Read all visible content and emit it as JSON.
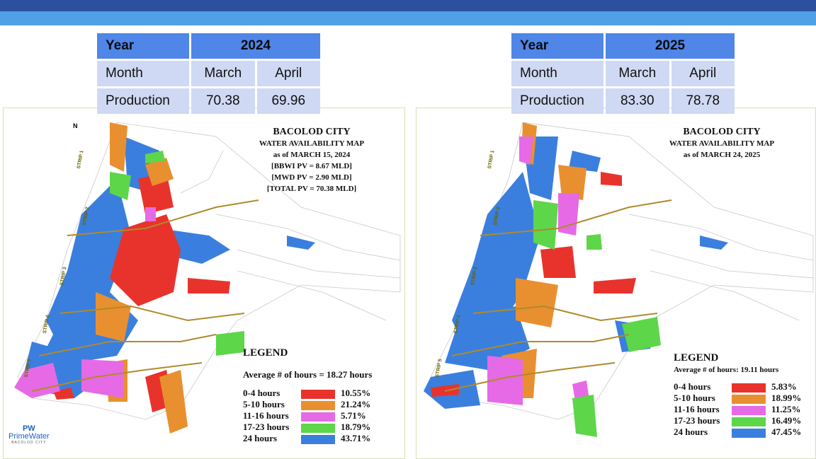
{
  "colors": {
    "header_dark": "#2c4f9e",
    "header_light": "#4fa0e6",
    "table_header": "#4f86e8",
    "table_row": "#cfd9f3",
    "red": "#e8332c",
    "orange": "#e8902f",
    "magenta": "#e66ae6",
    "green": "#5dd64a",
    "blue": "#3a7fde",
    "road": "#b08a2a"
  },
  "left": {
    "table": {
      "year_label": "Year",
      "year_value": "2024",
      "month_label": "Month",
      "month1": "March",
      "month2": "April",
      "prod_label": "Production",
      "prod1": "70.38",
      "prod2": "69.96"
    },
    "map": {
      "title": "BACOLOD CITY",
      "subtitle": "WATER AVAILABILITY MAP",
      "date": "as of MARCH 15, 2024",
      "line1": "[BBWI PV = 8.67 MLD]",
      "line2": "[MWD PV = 2.90 MLD]",
      "line3": "[TOTAL PV = 70.38 MLD]"
    },
    "legend": {
      "title": "LEGEND",
      "avg": "Average # of hours = 18.27 hours",
      "items": [
        {
          "label": "0-4 hours",
          "pct": "10.55%",
          "color": "#e8332c"
        },
        {
          "label": "5-10 hours",
          "pct": "21.24%",
          "color": "#e8902f"
        },
        {
          "label": "11-16 hours",
          "pct": "5.71%",
          "color": "#e66ae6"
        },
        {
          "label": "17-23 hours",
          "pct": "18.79%",
          "color": "#5dd64a"
        },
        {
          "label": "24 hours",
          "pct": "43.71%",
          "color": "#3a7fde"
        }
      ]
    },
    "strips": [
      "STRIP 1",
      "STRIP 2",
      "STRIP 3",
      "STRIP 4",
      "STRIP 5"
    ],
    "north": "N",
    "logo": {
      "mark": "PW",
      "name": "PrimeWater",
      "sub": "BACOLOD CITY"
    }
  },
  "right": {
    "table": {
      "year_label": "Year",
      "year_value": "2025",
      "month_label": "Month",
      "month1": "March",
      "month2": "April",
      "prod_label": "Production",
      "prod1": "83.30",
      "prod2": "78.78"
    },
    "map": {
      "title": "BACOLOD CITY",
      "subtitle": "WATER AVAILABILITY MAP",
      "date": "as of MARCH 24, 2025"
    },
    "legend": {
      "title": "LEGEND",
      "avg": "Average # of hours:  19.11 hours",
      "items": [
        {
          "label": "0-4 hours",
          "pct": "5.83%",
          "color": "#e8332c"
        },
        {
          "label": "5-10 hours",
          "pct": "18.99%",
          "color": "#e8902f"
        },
        {
          "label": "11-16 hours",
          "pct": "11.25%",
          "color": "#e66ae6"
        },
        {
          "label": "17-23 hours",
          "pct": "16.49%",
          "color": "#5dd64a"
        },
        {
          "label": "24 hours",
          "pct": "47.45%",
          "color": "#3a7fde"
        }
      ]
    },
    "strips": [
      "STRIP 1",
      "STRIP 2",
      "STRIP 3",
      "STRIP 4",
      "STRIP 5"
    ]
  }
}
